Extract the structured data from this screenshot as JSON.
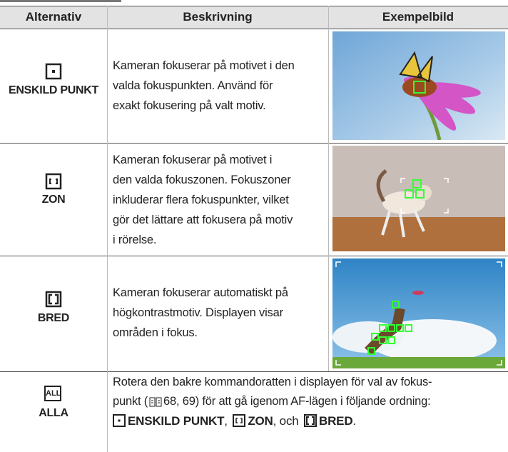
{
  "table": {
    "headers": [
      "Alternativ",
      "Beskrivning",
      "Exempelbild"
    ],
    "rows": [
      {
        "label": "ENSKILD PUNKT",
        "description": [
          "Kameran fokuserar på motivet i den",
          "valda fokuspunkten. Använd för",
          "exakt fokusering på valt motiv."
        ]
      },
      {
        "label": "ZON",
        "description": [
          "Kameran fokuserar på motivet i",
          "den valda fokuszonen. Fokuszoner",
          "inkluderar flera fokuspunkter, vilket",
          "gör det lättare att fokusera på motiv",
          "i rörelse."
        ]
      },
      {
        "label": "BRED",
        "description": [
          "Kameran fokuserar automatiskt på",
          "högkontrastmotiv. Displayen visar",
          "områden i fokus."
        ]
      }
    ],
    "last_row": {
      "icon_text": "ALL",
      "label": "ALLA",
      "line1": "Rotera den bakre kommandoratten i displayen för val av fokus-",
      "line2_start": "punkt (",
      "line2_end": "68, 69) för att gå igenom AF-lägen i följande ordning:",
      "seq1": "ENSKILD PUNKT",
      "sep1": ", ",
      "seq2": "ZON",
      "sep2": ", och ",
      "seq3": "BRED",
      "end": "."
    }
  }
}
